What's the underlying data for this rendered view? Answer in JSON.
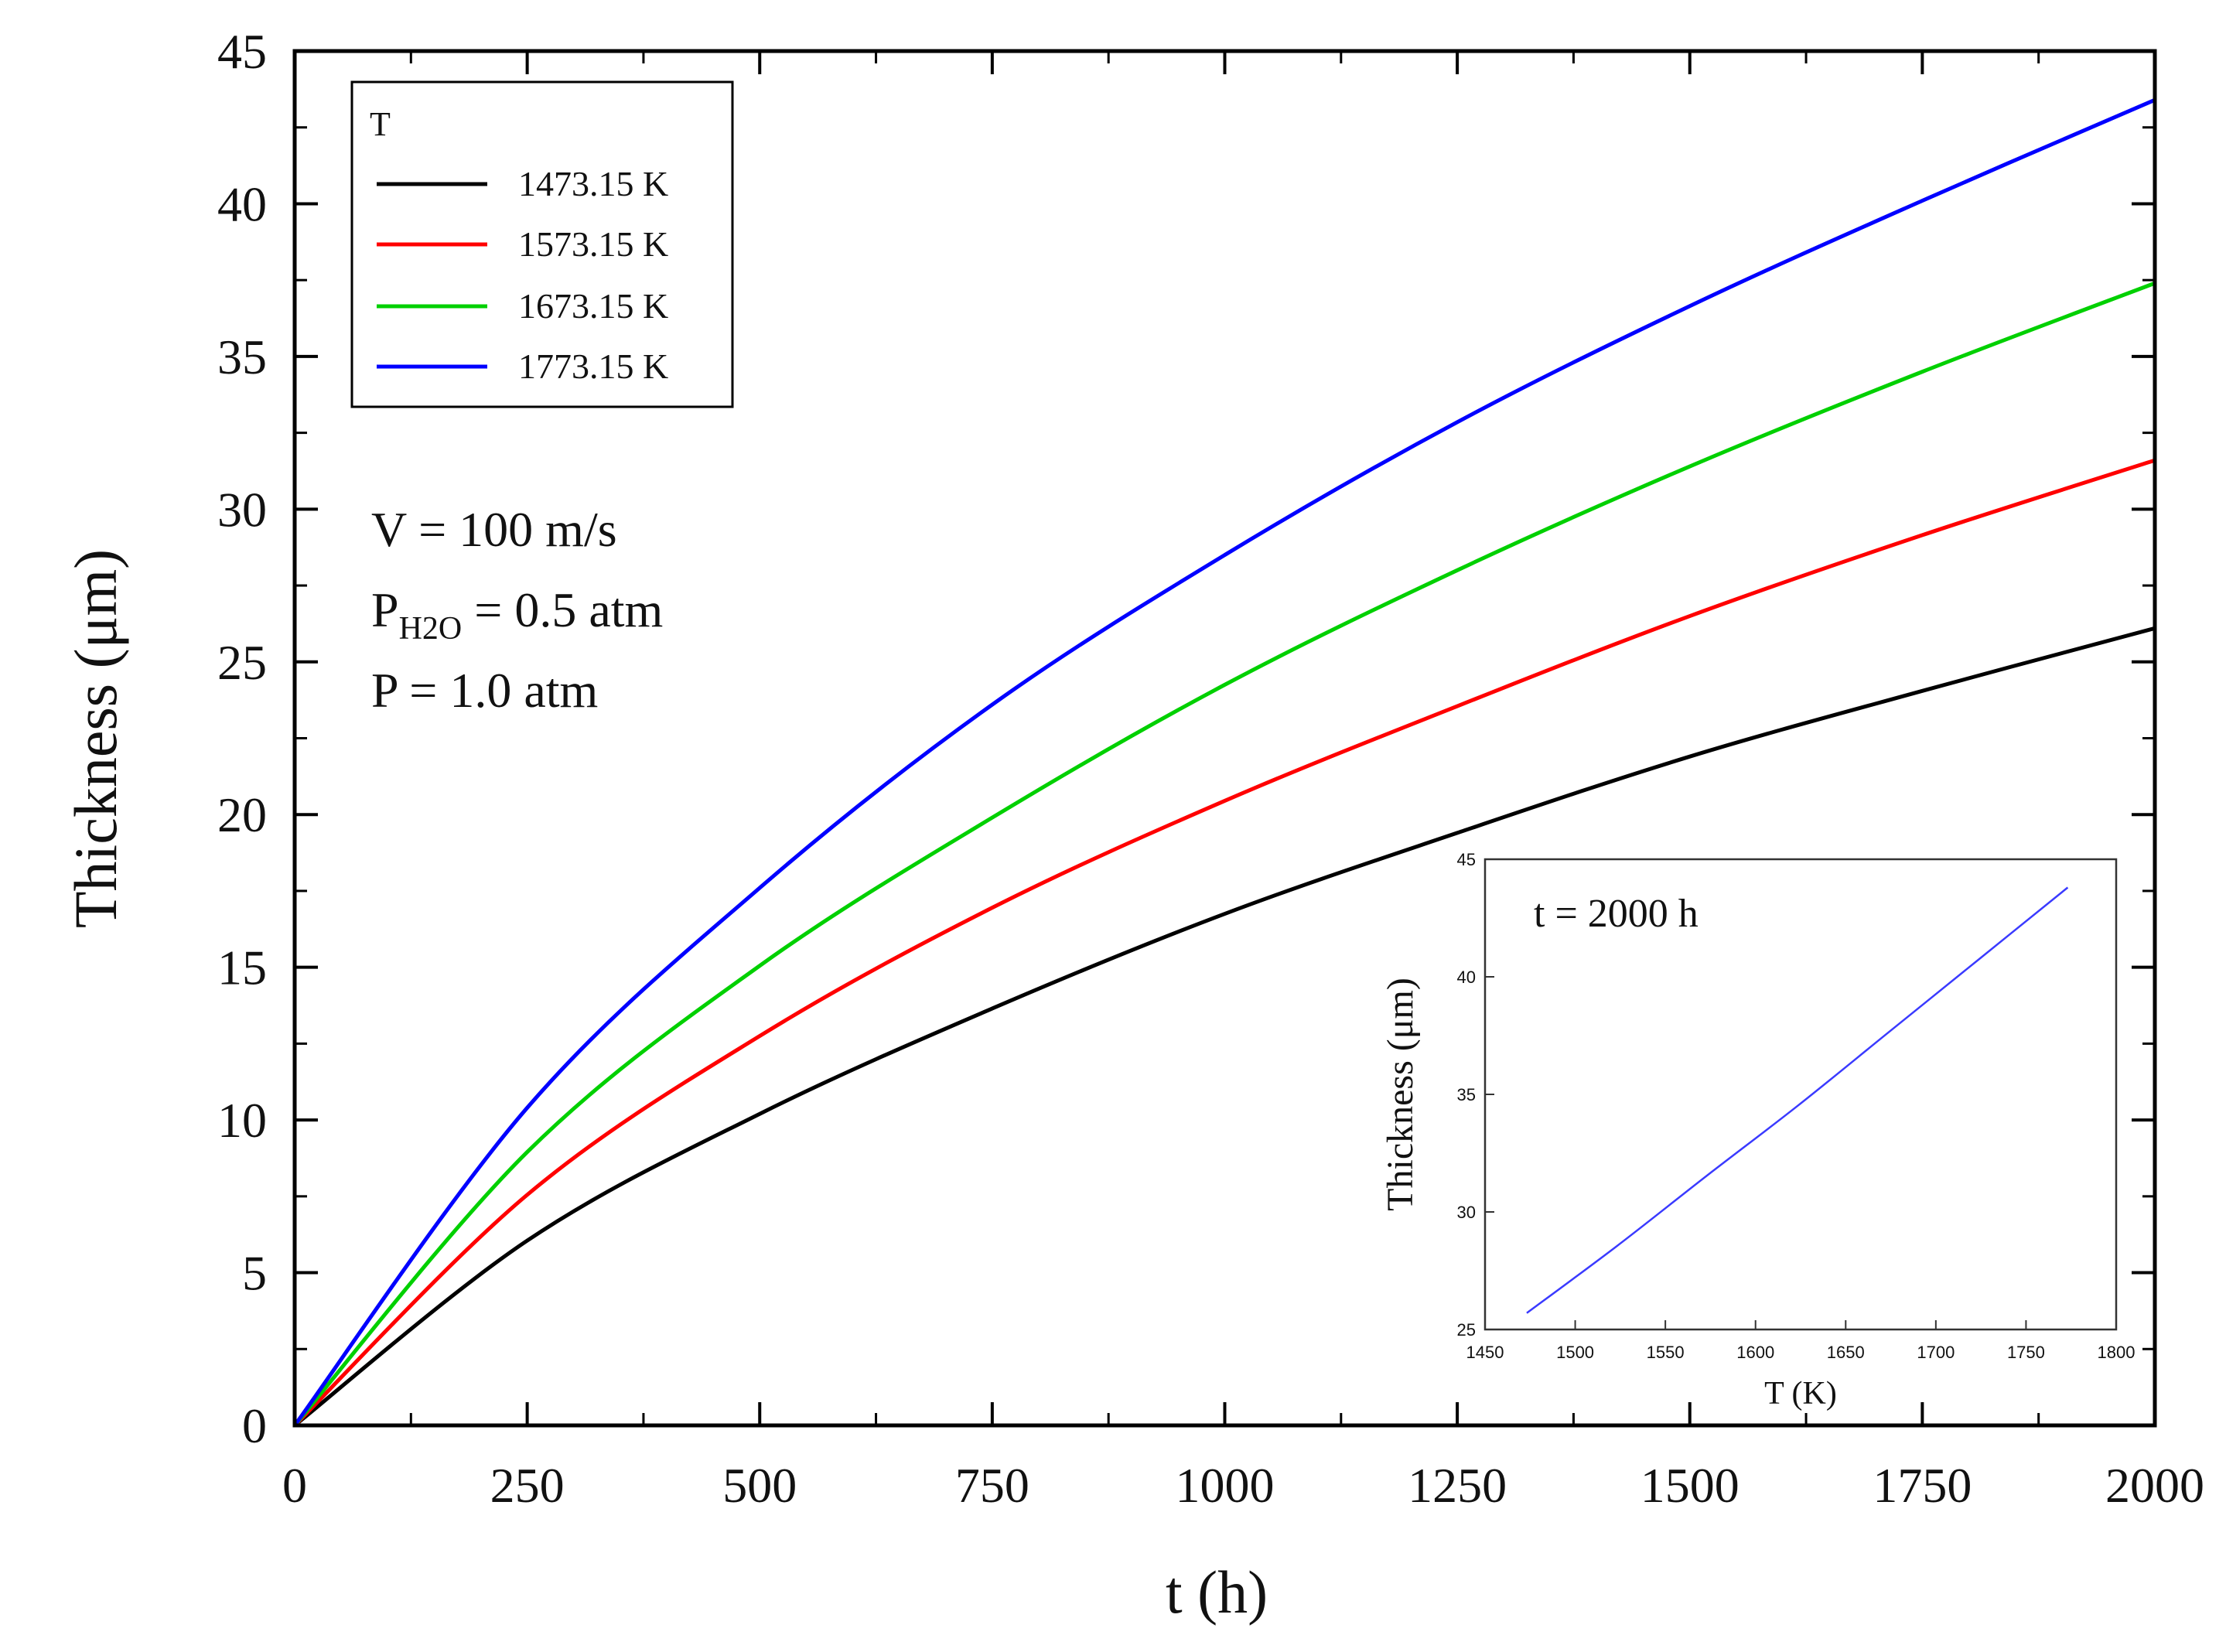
{
  "chart_data": [
    {
      "type": "line",
      "xlabel": "t (h)",
      "ylabel": "Thickness (μm)",
      "xlim": [
        0,
        2000
      ],
      "ylim": [
        0,
        45
      ],
      "xticks": [
        "0",
        "250",
        "500",
        "750",
        "1000",
        "1250",
        "1500",
        "1750",
        "2000"
      ],
      "yticks": [
        "0",
        "5",
        "10",
        "15",
        "20",
        "25",
        "30",
        "35",
        "40",
        "45"
      ],
      "grid": false,
      "legend": {
        "placement": "top-left",
        "title": "T",
        "entries": [
          "1473.15 K",
          "1573.15 K",
          "1673.15 K",
          "1773.15 K"
        ]
      },
      "annotations": {
        "velocity": "V = 100 m/s",
        "pressure_h2o_prefix": "P",
        "pressure_h2o_subscript": "H2O",
        "pressure_h2o_suffix": " = 0.5 atm",
        "pressure": "P = 1.0 atm"
      },
      "x": [
        0,
        250,
        500,
        750,
        1000,
        1250,
        1500,
        1750,
        2000
      ],
      "series": [
        {
          "name": "1473.15 K",
          "color": "#000000",
          "values": [
            0,
            6.05,
            10.2,
            13.65,
            16.75,
            19.4,
            21.9,
            24.05,
            26.1
          ]
        },
        {
          "name": "1573.15 K",
          "color": "#ff0000",
          "values": [
            0,
            7.55,
            12.75,
            16.95,
            20.45,
            23.55,
            26.5,
            29.15,
            31.6
          ]
        },
        {
          "name": "1673.15 K",
          "color": "#00d000",
          "values": [
            0,
            8.95,
            15.05,
            19.9,
            24.25,
            28.0,
            31.4,
            34.5,
            37.4
          ]
        },
        {
          "name": "1773.15 K",
          "color": "#0000ff",
          "values": [
            0,
            10.4,
            17.6,
            23.6,
            28.5,
            32.85,
            36.65,
            40.1,
            43.4
          ]
        }
      ]
    },
    {
      "type": "line",
      "title": "t = 2000 h",
      "xlabel": "T (K)",
      "ylabel": "Thickness  (μm)",
      "xlim": [
        1450,
        1800
      ],
      "ylim": [
        25,
        45
      ],
      "xticks": [
        "1450",
        "1500",
        "1550",
        "1600",
        "1650",
        "1700",
        "1750",
        "1800"
      ],
      "yticks": [
        "25",
        "30",
        "35",
        "40",
        "45"
      ],
      "grid": false,
      "series": [
        {
          "color": "#3a3aff",
          "x": [
            1473.15,
            1523.15,
            1573.15,
            1623.15,
            1673.15,
            1723.15,
            1773.15
          ],
          "values": [
            25.7,
            28.55,
            31.55,
            34.5,
            37.6,
            40.7,
            43.8
          ]
        }
      ]
    }
  ]
}
